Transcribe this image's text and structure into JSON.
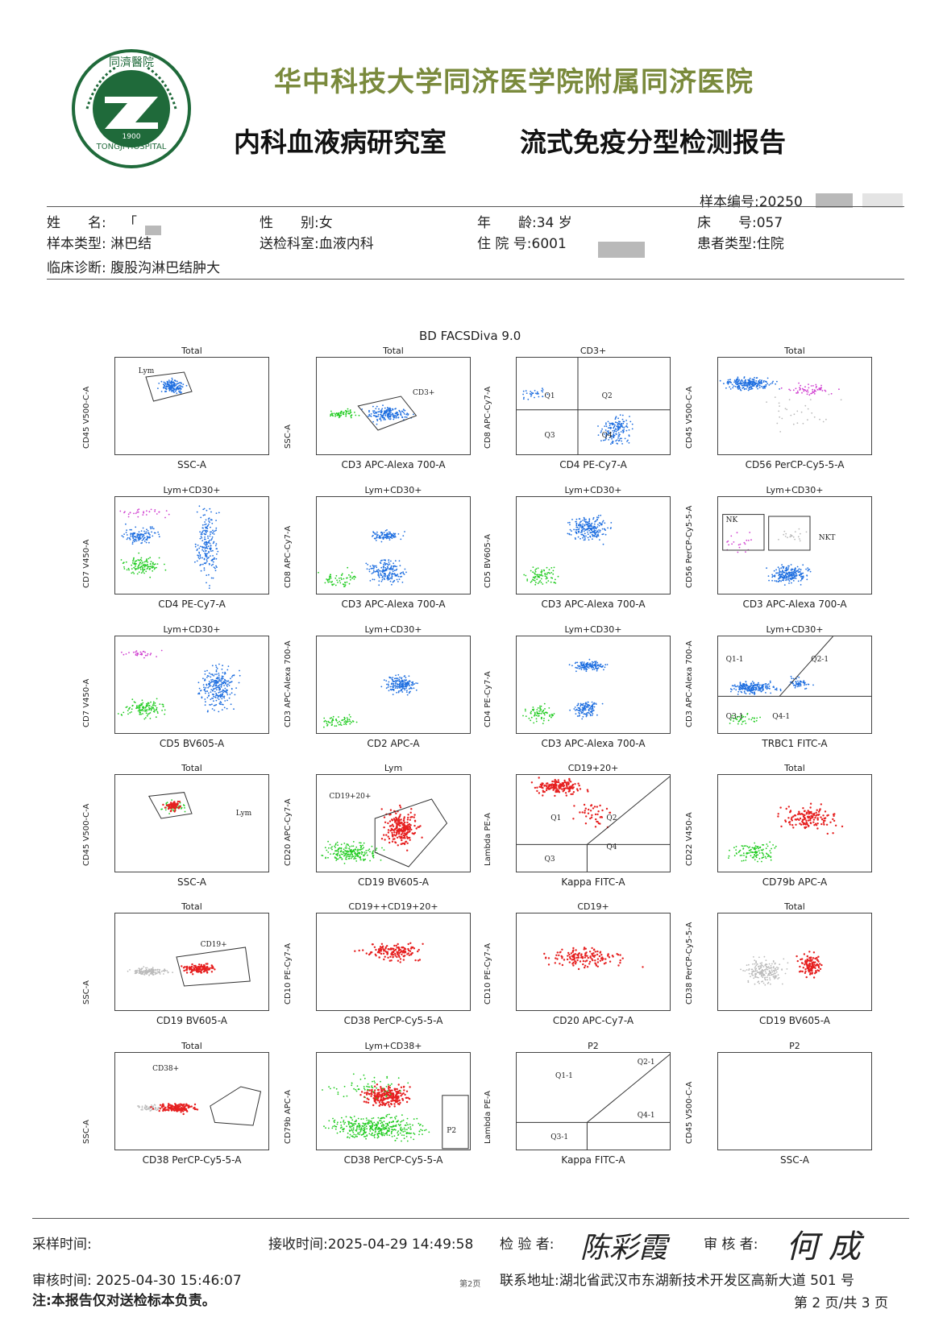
{
  "header": {
    "hospital_name": "华中科技大学同济医学院附属同济医院",
    "department": "内科血液病研究室",
    "report_title": "流式免疫分型检测报告",
    "logo_text": "同濟醫院 1900 TONGJI HOSPITAL"
  },
  "patient": {
    "sample_no": "样本编号:20250",
    "name_label": "姓　　名:",
    "name_value": "「",
    "gender": "性　　别:女",
    "age": "年　　龄:34 岁",
    "bed": "床　　号:057",
    "sample_type": "样本类型: 淋巴结",
    "dept_sent": "送检科室:血液内科",
    "admission_no": "住 院 号:6001",
    "patient_type": "患者类型:住院",
    "diagnosis": "临床诊断:  腹股沟淋巴结肿大"
  },
  "software": "BD FACSDiva 9.0",
  "plots": [
    {
      "title": "Total",
      "x": "SSC-A",
      "y": "CD45 V500-C-A",
      "gates": [
        "Lym"
      ]
    },
    {
      "title": "Total",
      "x": "CD3 APC-Alexa 700-A",
      "y": "SSC-A",
      "gates": [
        "CD3+"
      ]
    },
    {
      "title": "CD3+",
      "x": "CD4 PE-Cy7-A",
      "y": "CD8 APC-Cy7-A",
      "gates": [
        "Q1",
        "Q2",
        "Q3",
        "Q4"
      ]
    },
    {
      "title": "Total",
      "x": "CD56 PerCP-Cy5-5-A",
      "y": "CD45 V500-C-A",
      "gates": []
    },
    {
      "title": "Lym+CD30+",
      "x": "CD4 PE-Cy7-A",
      "y": "CD7 V450-A",
      "gates": []
    },
    {
      "title": "Lym+CD30+",
      "x": "CD3 APC-Alexa 700-A",
      "y": "CD8 APC-Cy7-A",
      "gates": []
    },
    {
      "title": "Lym+CD30+",
      "x": "CD3 APC-Alexa 700-A",
      "y": "CD5 BV605-A",
      "gates": []
    },
    {
      "title": "Lym+CD30+",
      "x": "CD3 APC-Alexa 700-A",
      "y": "CD56 PerCP-Cy5-5-A",
      "gates": [
        "NK",
        "NKT"
      ]
    },
    {
      "title": "Lym+CD30+",
      "x": "CD5 BV605-A",
      "y": "CD7 V450-A",
      "gates": []
    },
    {
      "title": "Lym+CD30+",
      "x": "CD2 APC-A",
      "y": "CD3 APC-Alexa 700-A",
      "gates": []
    },
    {
      "title": "Lym+CD30+",
      "x": "CD3 APC-Alexa 700-A",
      "y": "CD4 PE-Cy7-A",
      "gates": []
    },
    {
      "title": "Lym+CD30+",
      "x": "TRBC1 FITC-A",
      "y": "CD3 APC-Alexa 700-A",
      "gates": [
        "Q1-1",
        "Q2-1",
        "Q3-1",
        "Q4-1"
      ]
    },
    {
      "title": "Total",
      "x": "SSC-A",
      "y": "CD45 V500-C-A",
      "gates": [
        "Lym"
      ]
    },
    {
      "title": "Lym",
      "x": "CD19 BV605-A",
      "y": "CD20 APC-Cy7-A",
      "gates": [
        "CD19+20+"
      ]
    },
    {
      "title": "CD19+20+",
      "x": "Kappa FITC-A",
      "y": "Lambda PE-A",
      "gates": [
        "Q1",
        "Q2",
        "Q3",
        "Q4"
      ]
    },
    {
      "title": "Total",
      "x": "CD79b APC-A",
      "y": "CD22 V450-A",
      "gates": []
    },
    {
      "title": "Total",
      "x": "CD19 BV605-A",
      "y": "SSC-A",
      "gates": [
        "CD19+"
      ]
    },
    {
      "title": "CD19++CD19+20+",
      "x": "CD38 PerCP-Cy5-5-A",
      "y": "CD10 PE-Cy7-A",
      "gates": []
    },
    {
      "title": "CD19+",
      "x": "CD20 APC-Cy7-A",
      "y": "CD10 PE-Cy7-A",
      "gates": []
    },
    {
      "title": "Total",
      "x": "CD19 BV605-A",
      "y": "CD38 PerCP-Cy5-5-A",
      "gates": []
    },
    {
      "title": "Total",
      "x": "CD38 PerCP-Cy5-5-A",
      "y": "SSC-A",
      "gates": [
        "CD38+"
      ]
    },
    {
      "title": "Lym+CD38+",
      "x": "CD38 PerCP-Cy5-5-A",
      "y": "CD79b APC-A",
      "gates": [
        "P2"
      ]
    },
    {
      "title": "P2",
      "x": "Kappa FITC-A",
      "y": "Lambda PE-A",
      "gates": [
        "Q1-1",
        "Q2-1",
        "Q3-1",
        "Q4-1"
      ]
    },
    {
      "title": "P2",
      "x": "SSC-A",
      "y": "CD45 V500-C-A",
      "gates": []
    }
  ],
  "footer": {
    "collect_time": "采样时间:",
    "receive_time": "接收时间:2025-04-29  14:49:58",
    "examiner_label": "检 验 者:",
    "examiner_sign": "陈彩霞",
    "reviewer_label": "审 核 者:",
    "reviewer_sign": "何  成",
    "review_time": "审核时间:  2025-04-30  15:46:07",
    "page_small": "第2页",
    "address": "联系地址:湖北省武汉市东湖新技术开发区高新大道 501 号",
    "note": "注:本报告仅对送检标本负责。",
    "page": "第 2 页/共 3 页"
  },
  "colors": {
    "blue": "#1f6fe0",
    "green": "#22cc22",
    "red": "#e62020",
    "magenta": "#d040d0",
    "gray": "#bbbbbb",
    "hospital_green": "#7a8a3c",
    "logo_green": "#1f6a3a"
  }
}
